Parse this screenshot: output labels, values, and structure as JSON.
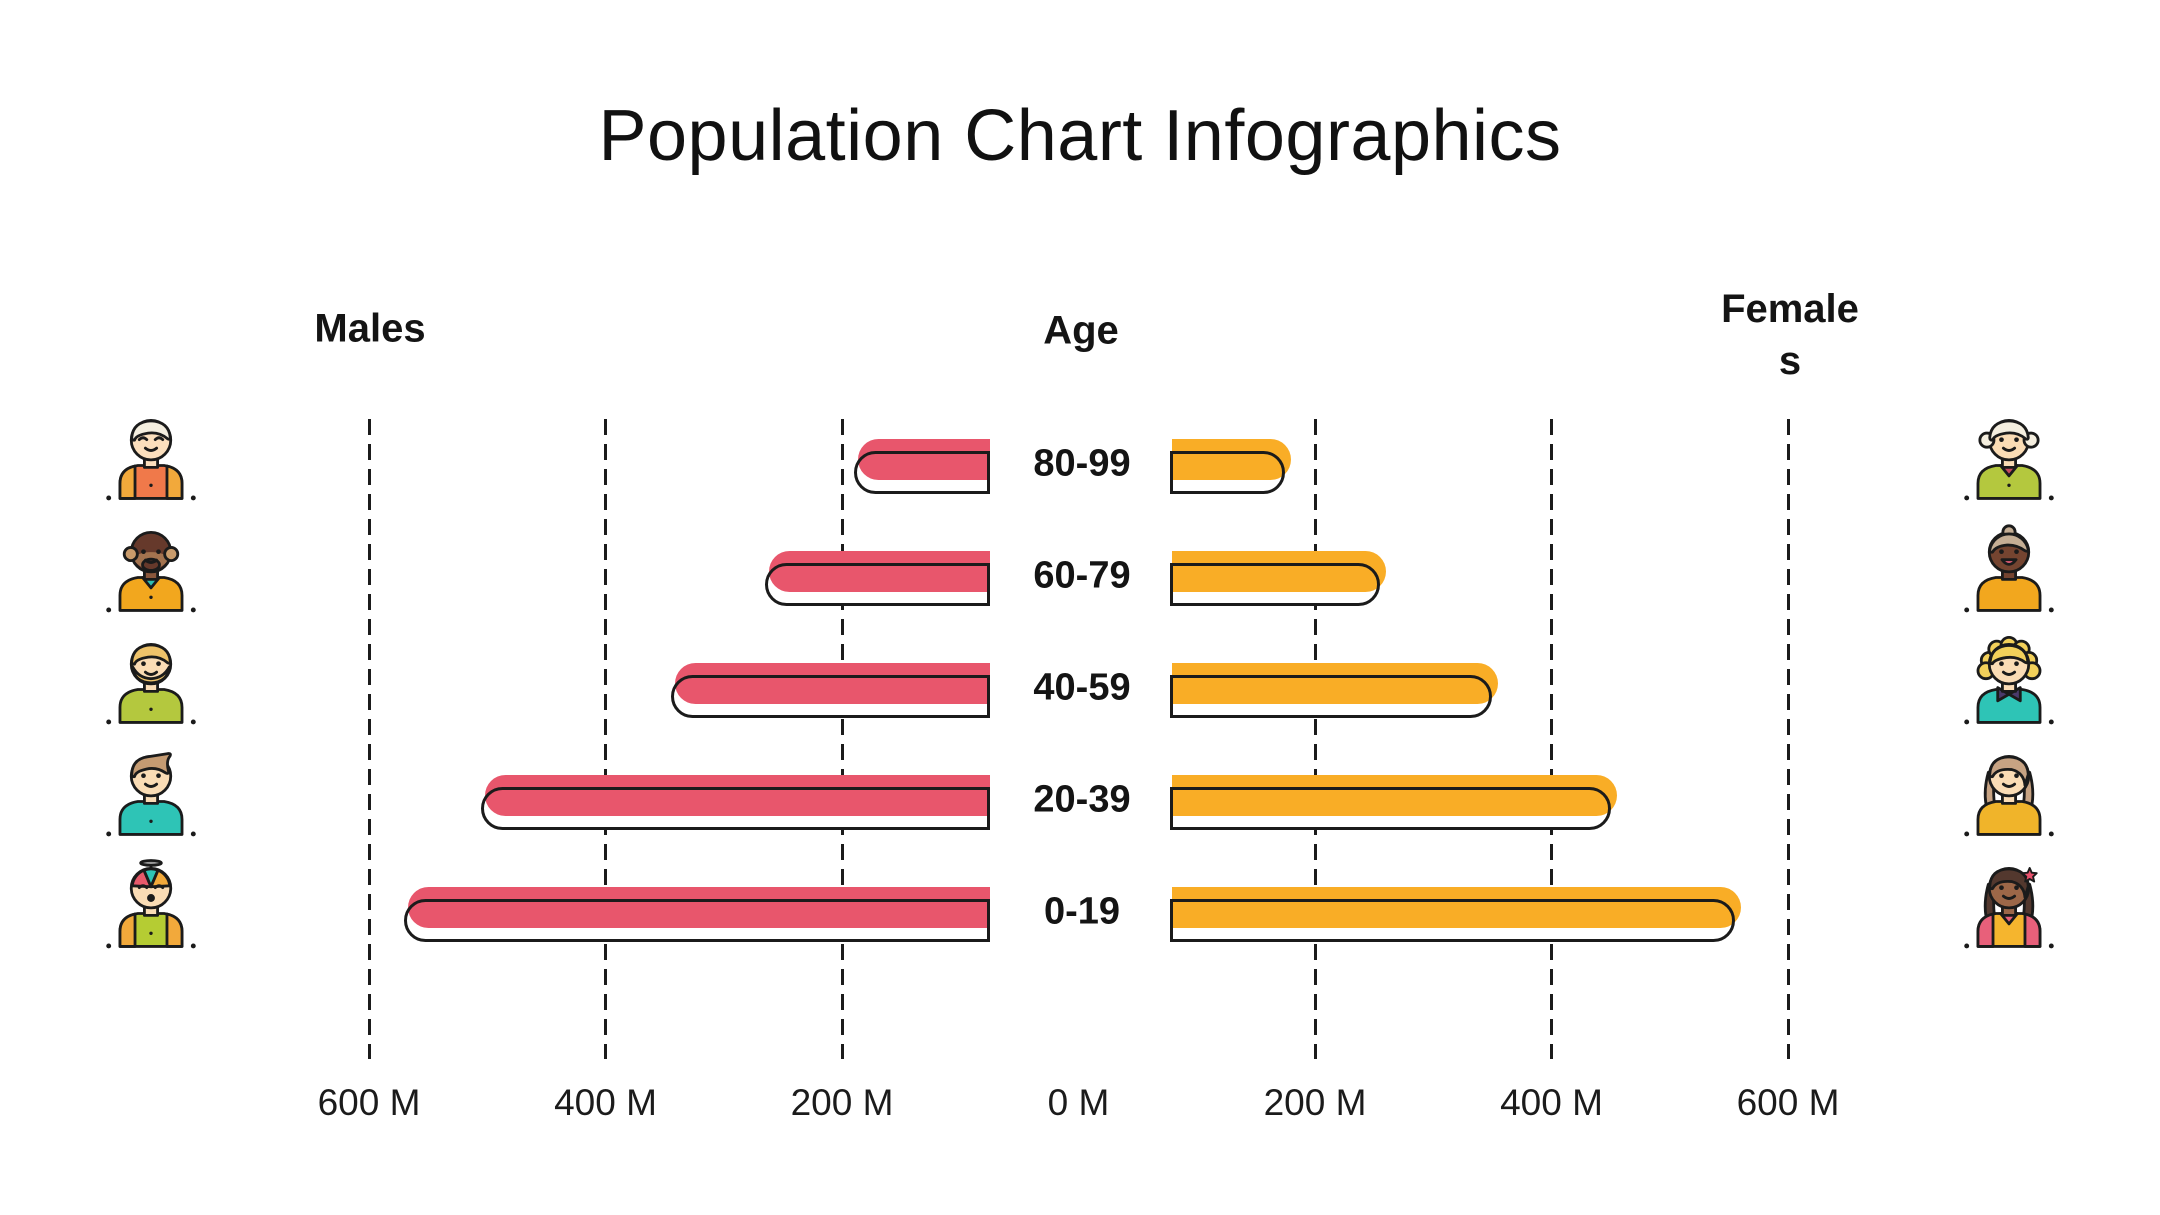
{
  "title": "Population Chart Infographics",
  "headers": {
    "males": "Males",
    "age": "Age",
    "females": "Females"
  },
  "chart_data": {
    "type": "bar",
    "subtype": "population-pyramid",
    "title": "Population Chart Infographics",
    "unit": "millions",
    "age_groups": [
      "80-99",
      "60-79",
      "40-59",
      "20-39",
      "0-19"
    ],
    "series": [
      {
        "name": "Males",
        "side": "left",
        "color": "#E8566C",
        "values_millions": [
          190,
          265,
          345,
          505,
          570
        ]
      },
      {
        "name": "Females",
        "side": "right",
        "color": "#F9AD26",
        "values_millions": [
          175,
          255,
          350,
          450,
          555
        ]
      }
    ],
    "axis": {
      "tick_labels": [
        "600 M",
        "400 M",
        "200 M",
        "0 M",
        "200 M",
        "400 M",
        "600 M"
      ],
      "tick_values_millions": [
        -600,
        -400,
        -200,
        0,
        200,
        400,
        600
      ],
      "gridlines": "dashed vertical lines at 200M, 400M, 600M on each side; none at 0M",
      "range_millions": [
        0,
        600
      ]
    },
    "legend_position": "none"
  },
  "styles": {
    "male_color": "#E8566C",
    "female_color": "#F9AD26",
    "outline_color": "#1b1b1b",
    "background": "#FFFFFF"
  },
  "avatars": {
    "male": [
      {
        "name": "elderly-man",
        "variant": "short",
        "skin": "#FBDFBD",
        "hair": "#F4EEDF",
        "shirt": "#F0794A",
        "accent": "#F2A93B",
        "eyes": "closed",
        "mouth": "smile",
        "sleeves": true,
        "button": true
      },
      {
        "name": "elderly-man-dark",
        "variant": "dark-balding",
        "skin": "#8A573C",
        "hair": "#66392B",
        "shirt": "#F2A71E",
        "accent": "#2FBFB0",
        "eyes": "open",
        "mouth": "smile",
        "collar": true,
        "button": true
      },
      {
        "name": "man-beard",
        "variant": "short",
        "skin": "#FADCB5",
        "hair": "#EFC36A",
        "shirt": "#B4C83E",
        "accent": "#B4C83E",
        "eyes": "open",
        "mouth": "smile",
        "beard": "#EFC36A",
        "button": true
      },
      {
        "name": "young-man",
        "variant": "quiff",
        "skin": "#FADCB5",
        "hair": "#C59B72",
        "shirt": "#2EC4B6",
        "accent": "#2EC4B6",
        "eyes": "open",
        "mouth": "smile",
        "button": true
      },
      {
        "name": "baby-boy",
        "variant": "beanie",
        "skin": "#FADCB5",
        "hair": "#FADCB5",
        "shirt": "#B5CC33",
        "accent": "#F2A93B",
        "eyes": "closed",
        "mouth": "open",
        "sleeves": true,
        "button": true,
        "beanie": [
          "#E85A6B",
          "#2EC4B6",
          "#F2A93B"
        ]
      }
    ],
    "female": [
      {
        "name": "elderly-woman",
        "variant": "side-buns",
        "skin": "#FADCB5",
        "hair": "#F4EEDF",
        "shirt": "#B4C83E",
        "accent": "#C64A5E",
        "eyes": "open",
        "mouth": "smile",
        "collar": true,
        "button": true
      },
      {
        "name": "elderly-woman-dark",
        "variant": "bun",
        "skin": "#744430",
        "hair": "#C5AE94",
        "shirt": "#F2A71E",
        "accent": "#F2A71E",
        "eyes": "open",
        "mouth": "grin"
      },
      {
        "name": "woman-curly",
        "variant": "curly",
        "skin": "#FADCB5",
        "hair": "#F2D05A",
        "shirt": "#2EC4B6",
        "accent": "#4A3A6B",
        "eyes": "open",
        "mouth": "smile",
        "bow": true
      },
      {
        "name": "woman-long-hair",
        "variant": "long",
        "skin": "#FADCB5",
        "hair": "#C7A383",
        "shirt": "#F0B42A",
        "accent": "#F0B42A",
        "eyes": "open",
        "mouth": "smile"
      },
      {
        "name": "girl",
        "variant": "long",
        "skin": "#9C6748",
        "hair": "#53382E",
        "shirt": "#F5B52E",
        "accent": "#E8607A",
        "eyes": "open",
        "mouth": "smile",
        "collar": true,
        "sleeves": true,
        "flower": "#E8506B"
      }
    ]
  }
}
